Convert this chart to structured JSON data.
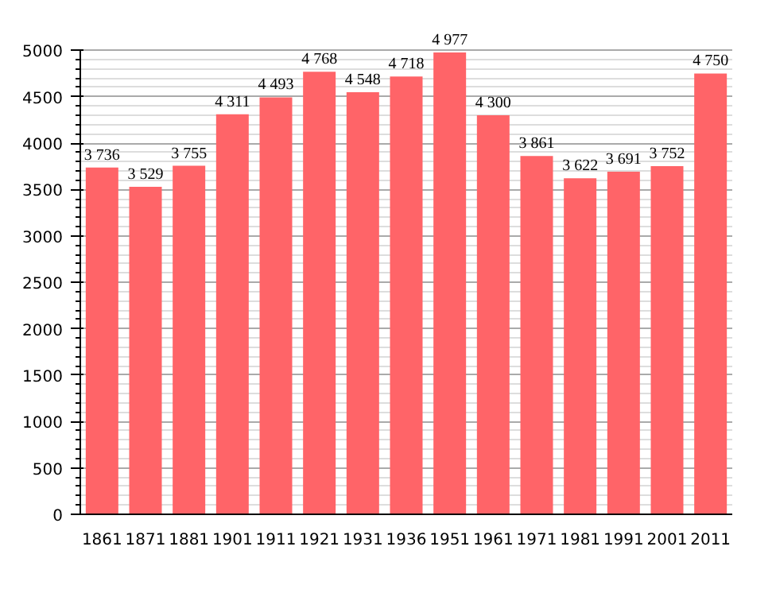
{
  "chart_data": {
    "type": "bar",
    "categories": [
      "1861",
      "1871",
      "1881",
      "1901",
      "1911",
      "1921",
      "1931",
      "1936",
      "1951",
      "1961",
      "1971",
      "1981",
      "1991",
      "2001",
      "2011"
    ],
    "values": [
      3736,
      3529,
      3755,
      4311,
      4493,
      4768,
      4548,
      4718,
      4977,
      4300,
      3861,
      3622,
      3691,
      3752,
      4750
    ],
    "value_labels": [
      "3 736",
      "3 529",
      "3 755",
      "4 311",
      "4 493",
      "4 768",
      "4 548",
      "4 718",
      "4 977",
      "4 300",
      "3 861",
      "3 622",
      "3 691",
      "3 752",
      "4 750"
    ],
    "color": "#ff6468",
    "ylim": [
      0,
      5000
    ],
    "yticks": [
      0,
      500,
      1000,
      1500,
      2000,
      2500,
      3000,
      3500,
      4000,
      4500,
      5000
    ],
    "grid": "y"
  }
}
